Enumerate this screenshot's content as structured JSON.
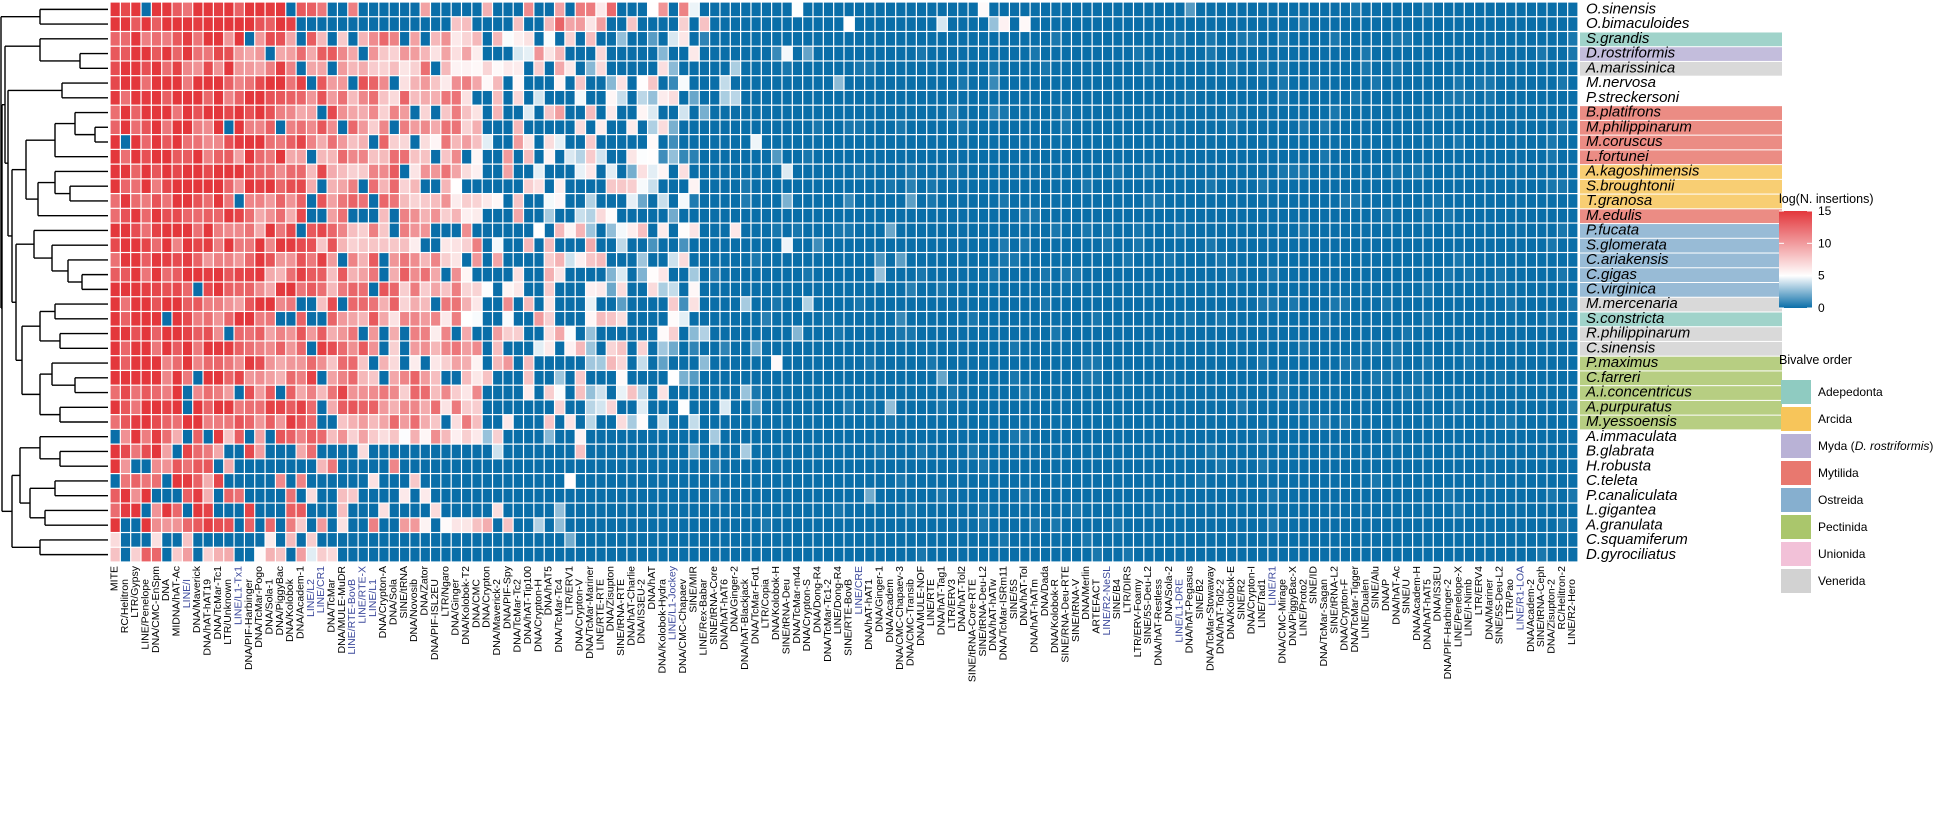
{
  "chart_data": {
    "type": "heatmap",
    "title": "",
    "colorbar": {
      "title": "log(N. insertions)",
      "ticks": [
        15,
        10,
        5,
        0
      ],
      "range": [
        0,
        15
      ],
      "colors": {
        "low": "#0a6ea8",
        "mid": "#ffffff",
        "high": "#e3373c"
      }
    },
    "rows": [
      {
        "name": "O.sinensis",
        "order": ""
      },
      {
        "name": "O.bimaculoides",
        "order": ""
      },
      {
        "name": "S.grandis",
        "order": "Adepedonta"
      },
      {
        "name": "D.rostriformis",
        "order": "Myda"
      },
      {
        "name": "A.marissinica",
        "order": "Venerida"
      },
      {
        "name": "M.nervosa",
        "order": ""
      },
      {
        "name": "P.streckersoni",
        "order": ""
      },
      {
        "name": "B.platifrons",
        "order": "Mytilida"
      },
      {
        "name": "M.philippinarum",
        "order": "Mytilida"
      },
      {
        "name": "M.coruscus",
        "order": "Mytilida"
      },
      {
        "name": "L.fortunei",
        "order": "Mytilida"
      },
      {
        "name": "A.kagoshimensis",
        "order": "Arcida"
      },
      {
        "name": "S.broughtonii",
        "order": "Arcida"
      },
      {
        "name": "T.granosa",
        "order": "Arcida"
      },
      {
        "name": "M.edulis",
        "order": "Mytilida"
      },
      {
        "name": "P.fucata",
        "order": "Ostreida"
      },
      {
        "name": "S.glomerata",
        "order": "Ostreida"
      },
      {
        "name": "C.ariakensis",
        "order": "Ostreida"
      },
      {
        "name": "C.gigas",
        "order": "Ostreida"
      },
      {
        "name": "C.virginica",
        "order": "Ostreida"
      },
      {
        "name": "M.mercenaria",
        "order": "Venerida"
      },
      {
        "name": "S.constricta",
        "order": "Adepedonta"
      },
      {
        "name": "R.philippinarum",
        "order": "Venerida"
      },
      {
        "name": "C.sinensis",
        "order": "Venerida"
      },
      {
        "name": "P.maximus",
        "order": "Pectinida"
      },
      {
        "name": "C.farreri",
        "order": "Pectinida"
      },
      {
        "name": "A.i.concentricus",
        "order": "Pectinida"
      },
      {
        "name": "A.purpuratus",
        "order": "Pectinida"
      },
      {
        "name": "M.yessoensis",
        "order": "Pectinida"
      },
      {
        "name": "A.immaculata",
        "order": ""
      },
      {
        "name": "B.glabrata",
        "order": ""
      },
      {
        "name": "H.robusta",
        "order": ""
      },
      {
        "name": "C.teleta",
        "order": ""
      },
      {
        "name": "P.canaliculata",
        "order": ""
      },
      {
        "name": "L.gigantea",
        "order": ""
      },
      {
        "name": "A.granulata",
        "order": ""
      },
      {
        "name": "C.squamiferum",
        "order": ""
      },
      {
        "name": "D.gyrociliatus",
        "order": ""
      }
    ],
    "columns_odd": [
      "MITE",
      "LTR/Gypsy",
      "DNA/CMC-EnSpm",
      "MIDNA/hAT-Ac",
      "DNA/Maverick",
      "DNA/TcMar-Tc1",
      "LINE/L1-Tx1",
      "DNA/TcMar-Pogo",
      "DNA/PiggyBac",
      "DNA/Academ-1",
      "LINE/CR1",
      "DNA/MULE-MuDR",
      "LINE/RTE-X",
      "DNA/Crypton-A",
      "SINE/tRNA",
      "DNA/Zator",
      "LTR/Ngaro",
      "DNA/Kolobok-T2",
      "DNA/Crypton",
      "DNA/PIF-Spy",
      "DNA/hAT-Tip100",
      "DNA/hAT5",
      "LTR/ERV1",
      "DNA/TcMar-Mariner",
      "DNA/Zisupton",
      "DNA/hAT-Charlie",
      "DNA/hAT",
      "LINE/L1-Jockey",
      "SINE/MIR",
      "SINE/tRNA-Core",
      "DNA/Ginger-2",
      "DNA/TcMar-Fot1",
      "DNA/Kolobok-H",
      "DNA/TcMar-m44",
      "DNA/Dong-R4",
      "LINE/Dong-R4",
      "LINE/CRE",
      "DNA/Ginger-1",
      "DNA/CMC-Chapaev-3",
      "DNA/MULE-NOF",
      "DNA/hAT-Tag1",
      "DNA/hAT-Tol2",
      "SINE/tRNA-Deu-L2",
      "DNA/TcMar-ISRm11",
      "DNA/hAT-Tol",
      "DNA/Dada",
      "SINE/RNA-Deu-RTE",
      "DNA/Merlin",
      "LINE/R2-NeSL",
      "LTR/DIRS",
      "SINE/5S-Deu-L2",
      "DNA/Sola-2",
      "DNA/hAT-Pegasus",
      "DNA/TcMar-Stowaway",
      "DNA/Kolobok-E",
      "DNA/Crypton-I",
      "LINE/R1",
      "DNA/PiggyBac-X",
      "SINE/ID",
      "SINE/tRNA-L2",
      "DNA/TcMar-Tigger",
      "SINE/Alu",
      "DNA/hAT-Ac",
      "DNA/Academ-H",
      "DNA/IS3EU",
      "LINE/Penelope-X",
      "LTR/ERV4",
      "SINE/5S-Deu-L2",
      "LINE/R1-LOA",
      "SINE/tRNA-Ceph",
      "RC/Helitron-2"
    ],
    "columns_even": [
      "RC/Helitron",
      "LINE/Penelope",
      "DNA",
      "LINE/I",
      "DNA/hAT-hAT19",
      "LTR/Unknown",
      "DNA/PIF-Harbinger",
      "DNA/Sola-1",
      "DNA/Kolobok",
      "LINE/L2",
      "DNA/TcMar",
      "LINE/RTE-BovB",
      "LINE/L1",
      "DNA/Sola",
      "DNA/Novosib",
      "DNA/PIF-ISL2EU",
      "DNA/Ginger",
      "DNA/CMC",
      "DNA/Maverick-2",
      "DNA/TcMar-Tc2",
      "DNA/Crypton-H",
      "DNA/TcMar-Tc4",
      "DNA/Crypton-V",
      "LINE/RTE-RTE",
      "SINE/tRNA-RTE",
      "DNA/IS3EU-2",
      "DNA/Kolobok-Hydra",
      "DNA/CMC-Chapaev",
      "LINE/Rex-Babar",
      "DNA/hAT-hAT6",
      "DNA/hAT-Blackjack",
      "LTR/Copia",
      "SINE/tRNA-Deu",
      "DNA/Crypton-S",
      "DNA/TcMar-Tc1-2",
      "SINE/RTE-BovB",
      "DNA/hAT-hAT1",
      "DNA/Academ",
      "DNA/CMC-Transib",
      "LINE/RTE",
      "LTR/ERV3",
      "SINE/tRNA-Core-RTE",
      "DNA/hAT-hATw",
      "SINE/5S",
      "DNA/hAT-hATm",
      "DNA/Kolobok-R",
      "SINE/tRNA-V",
      "ARTEFACT",
      "SINE/B4",
      "LTR/ERV-Foamy",
      "DNA/hAT-Restless",
      "LINE/L1-DRE",
      "SINE/B2",
      "DNA/hAT-Tol2-2",
      "SINE/R2",
      "LINE/Tad1",
      "DNA/CMC-Mirage",
      "LINE/Proto2",
      "DNA/TcMar-Sagan",
      "DNA/Crypton-F",
      "LINE/Dualen",
      "DNA/P",
      "SINE/U",
      "DNA/hAT-hAT5",
      "DNA/PIF-Harbinger-2",
      "LINE/I-Nimb",
      "DNA/Mariner",
      "LTR/Pao",
      "DNA/Academ-2",
      "DNA/Zisupton-2",
      "LINE/R2-Hero"
    ],
    "blue_columns": [
      "LINE/L1-Tx1",
      "LINE/CR1",
      "LINE/RTE-X",
      "LINE/RTE-BovB",
      "LINE/L1",
      "LINE/L1-Jockey",
      "LINE/CRE",
      "LINE/R2",
      "LINE/R2-NeSL",
      "LINE/R1",
      "LINE/R1-LOA",
      "LINE/L1-DRE",
      "LINE/L2",
      "LINE/I"
    ],
    "legend": {
      "title": "Bivalve order",
      "entries": [
        {
          "label": "Adepedonta",
          "color": "#8fcbc1"
        },
        {
          "label": "Arcida",
          "color": "#f7c55a"
        },
        {
          "label": "Myda (",
          "label_italic": "D. rostriformis",
          "label_end": ")",
          "color": "#b9b2d6"
        },
        {
          "label": "Mytilida",
          "color": "#e8786f"
        },
        {
          "label": "Ostreida",
          "color": "#86afcf"
        },
        {
          "label": "Pectinida",
          "color": "#aac66c"
        },
        {
          "label": "Unionida",
          "color": "#f2c1d8"
        },
        {
          "label": "Venerida",
          "color": "#d2d2d2"
        }
      ]
    }
  }
}
